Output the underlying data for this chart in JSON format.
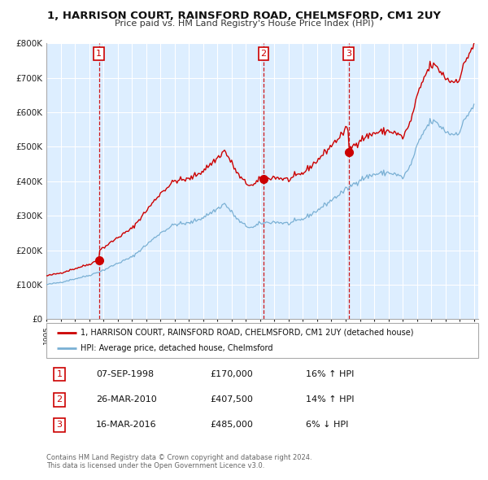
{
  "title": "1, HARRISON COURT, RAINSFORD ROAD, CHELMSFORD, CM1 2UY",
  "subtitle": "Price paid vs. HM Land Registry's House Price Index (HPI)",
  "sale_year_nums": [
    1998.69,
    2010.23,
    2016.21
  ],
  "sale_prices": [
    170000,
    407500,
    485000
  ],
  "sale_labels": [
    "1",
    "2",
    "3"
  ],
  "sale_dates_display": [
    "07-SEP-1998",
    "26-MAR-2010",
    "16-MAR-2016"
  ],
  "sale_hpi_pct": [
    "16% ↑ HPI",
    "14% ↑ HPI",
    "6% ↓ HPI"
  ],
  "legend_label_red": "1, HARRISON COURT, RAINSFORD ROAD, CHELMSFORD, CM1 2UY (detached house)",
  "legend_label_blue": "HPI: Average price, detached house, Chelmsford",
  "footer1": "Contains HM Land Registry data © Crown copyright and database right 2024.",
  "footer2": "This data is licensed under the Open Government Licence v3.0.",
  "red_color": "#cc0000",
  "blue_color": "#7ab0d4",
  "dashed_color": "#cc0000",
  "chart_bg": "#ddeeff",
  "ylim": [
    0,
    800000
  ],
  "yticks": [
    0,
    100000,
    200000,
    300000,
    400000,
    500000,
    600000,
    700000,
    800000
  ],
  "background_color": "#ffffff",
  "grid_color": "#ffffff"
}
